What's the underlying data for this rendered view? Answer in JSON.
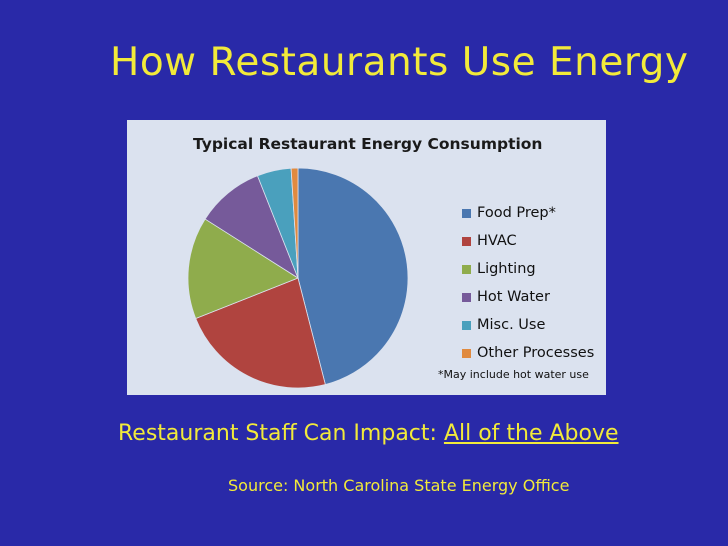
{
  "slide": {
    "title": "How Restaurants Use Energy",
    "impact_prefix": "Restaurant Staff Can Impact: ",
    "impact_link": "All of the Above",
    "source": "Source: North Carolina State Energy Office"
  },
  "chart_data": {
    "type": "pie",
    "title": "Typical Restaurant Energy Consumption",
    "footnote": "*May include hot water use",
    "legend_position": "right",
    "slices": [
      {
        "label": "Food Prep*",
        "value": 46,
        "color": "#4a77b0"
      },
      {
        "label": "HVAC",
        "value": 23,
        "color": "#b0443f"
      },
      {
        "label": "Lighting",
        "value": 15,
        "color": "#8fac4c"
      },
      {
        "label": "Hot Water",
        "value": 10,
        "color": "#765a9a"
      },
      {
        "label": "Misc. Use",
        "value": 5,
        "color": "#4aa0bd"
      },
      {
        "label": "Other Processes",
        "value": 1,
        "color": "#e08a3f"
      }
    ]
  }
}
